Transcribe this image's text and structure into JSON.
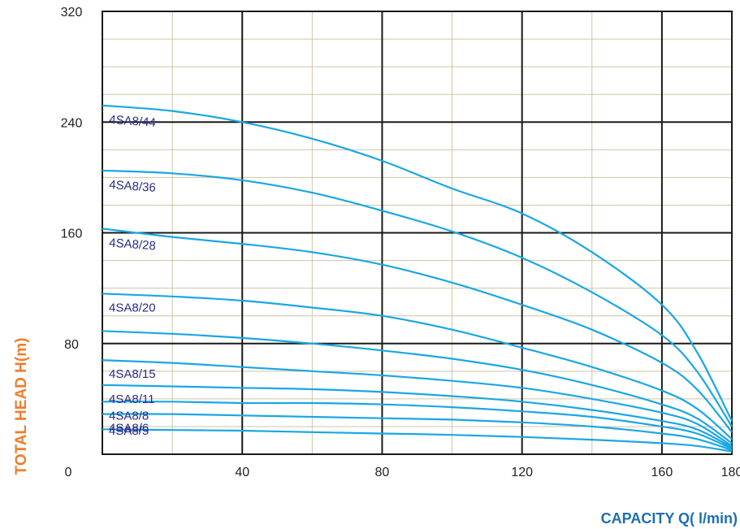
{
  "chart_data": {
    "type": "line",
    "xlabel": "CAPACITY Q( l/min)",
    "ylabel": "TOTAL HEAD H(m)",
    "xlim": [
      0,
      180
    ],
    "ylim": [
      0,
      320
    ],
    "x_ticks": [
      0,
      40,
      80,
      120,
      160,
      180
    ],
    "y_ticks": [
      80,
      160,
      240,
      320
    ],
    "grid": true,
    "colors": {
      "curve": "#1aa7e3",
      "series_label": "#2a2d86",
      "axis_title_y": "#ef7d2d",
      "axis_title_x": "#1b6fb5",
      "major_grid": "#1a1a1a",
      "minor_grid": "#cfc4a6"
    },
    "series": [
      {
        "name": "4SA8/44",
        "x": [
          0,
          20,
          40,
          60,
          80,
          100,
          120,
          140,
          160,
          170,
          180
        ],
        "y": [
          252,
          248,
          240,
          228,
          212,
          192,
          174,
          146,
          108,
          74,
          24
        ]
      },
      {
        "name": "4SA8/36",
        "x": [
          0,
          20,
          40,
          60,
          80,
          100,
          120,
          140,
          160,
          170,
          180
        ],
        "y": [
          205,
          203,
          198,
          189,
          176,
          161,
          142,
          117,
          86,
          60,
          20
        ]
      },
      {
        "name": "4SA8/28",
        "x": [
          0,
          20,
          40,
          60,
          80,
          100,
          120,
          140,
          160,
          170,
          180
        ],
        "y": [
          163,
          157,
          152,
          146,
          137,
          124,
          108,
          90,
          66,
          47,
          16
        ]
      },
      {
        "name": "4SA8/20",
        "x": [
          0,
          20,
          40,
          60,
          80,
          100,
          120,
          140,
          160,
          170,
          180
        ],
        "y": [
          116,
          114,
          111,
          106,
          100,
          90,
          77,
          63,
          46,
          33,
          11
        ]
      },
      {
        "name": "",
        "x": [
          0,
          20,
          40,
          60,
          80,
          100,
          120,
          140,
          160,
          170,
          180
        ],
        "y": [
          89,
          87,
          84,
          80,
          75,
          69,
          61,
          50,
          36,
          26,
          8
        ]
      },
      {
        "name": "4SA8/15",
        "x": [
          0,
          20,
          40,
          60,
          80,
          100,
          120,
          140,
          160,
          170,
          180
        ],
        "y": [
          68,
          66,
          63,
          60,
          57,
          53,
          48,
          40,
          30,
          22,
          6
        ]
      },
      {
        "name": "4SA8/11",
        "x": [
          0,
          20,
          40,
          60,
          80,
          100,
          120,
          140,
          160,
          170,
          180
        ],
        "y": [
          50,
          49,
          48,
          47,
          45,
          42,
          38,
          32,
          24,
          18,
          5
        ]
      },
      {
        "name": "4SA8/8",
        "x": [
          0,
          20,
          40,
          60,
          80,
          100,
          120,
          140,
          160,
          170,
          180
        ],
        "y": [
          38,
          38,
          37,
          37,
          36,
          34,
          31,
          27,
          20,
          15,
          4
        ]
      },
      {
        "name": "4SA8/6",
        "x": [
          0,
          20,
          40,
          60,
          80,
          100,
          120,
          140,
          160,
          170,
          180
        ],
        "y": [
          29,
          29,
          28,
          27,
          26,
          25,
          23,
          20,
          15,
          11,
          3
        ]
      }
    ]
  }
}
